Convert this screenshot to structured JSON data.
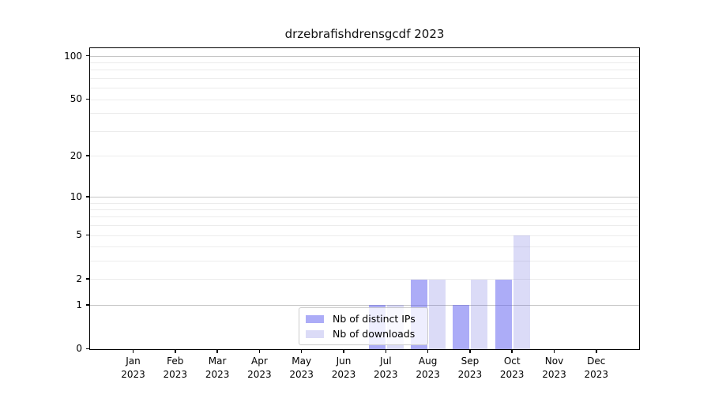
{
  "title": "drzebrafishdrensgcdf 2023",
  "colors": {
    "distinct_ips_fill": "rgba(90,90,240,0.5)",
    "downloads_fill": "rgba(90,90,220,0.22)",
    "grid_major": "#c6c6c6",
    "grid_minor": "#ececec",
    "spine": "#000000",
    "legend_border": "#cbcbcb"
  },
  "legend": {
    "items": [
      {
        "label": "Nb of distinct IPs",
        "swatch": "distinct_ips_fill"
      },
      {
        "label": "Nb of downloads",
        "swatch": "downloads_fill"
      }
    ]
  },
  "chart_data": {
    "type": "bar",
    "title": "drzebrafishdrensgcdf 2023",
    "categories": [
      "Jan 2023",
      "Feb 2023",
      "Mar 2023",
      "Apr 2023",
      "May 2023",
      "Jun 2023",
      "Jul 2023",
      "Aug 2023",
      "Sep 2023",
      "Oct 2023",
      "Nov 2023",
      "Dec 2023"
    ],
    "x_tick_months": [
      "Jan",
      "Feb",
      "Mar",
      "Apr",
      "May",
      "Jun",
      "Jul",
      "Aug",
      "Sep",
      "Oct",
      "Nov",
      "Dec"
    ],
    "x_tick_year": "2023",
    "series": [
      {
        "name": "Nb of distinct IPs",
        "values": [
          0,
          0,
          0,
          0,
          0,
          0,
          1,
          2,
          1,
          2,
          0,
          0
        ]
      },
      {
        "name": "Nb of downloads",
        "values": [
          0,
          0,
          0,
          0,
          0,
          0,
          1,
          2,
          2,
          5,
          0,
          0
        ]
      }
    ],
    "xlabel": "",
    "ylabel": "",
    "y_scale": "log(1+x)",
    "y_ticks_labeled": [
      0,
      1,
      2,
      5,
      10,
      20,
      50,
      100
    ],
    "y_grid_major": [
      1,
      10,
      100
    ],
    "y_grid_minor": [
      2,
      3,
      4,
      5,
      6,
      7,
      8,
      9,
      20,
      30,
      40,
      50,
      60,
      70,
      80,
      90
    ],
    "ylim": [
      0,
      117
    ],
    "grid": true,
    "legend_position": "lower center"
  }
}
